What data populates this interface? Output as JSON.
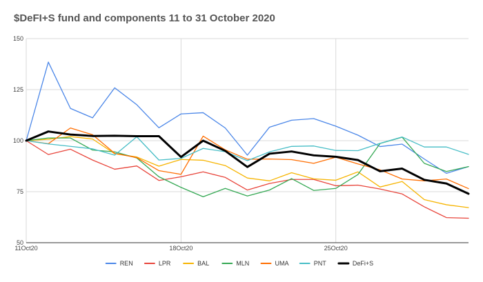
{
  "chart_data": {
    "type": "line",
    "title": "$DeFI+S fund and components 11 to 31 October 2020",
    "xlabel": "",
    "ylabel": "",
    "ylim": [
      50,
      150
    ],
    "yticks": [
      50,
      75,
      100,
      125,
      150
    ],
    "x": [
      "11Oct20",
      "12Oct20",
      "13Oct20",
      "14Oct20",
      "15Oct20",
      "16Oct20",
      "17Oct20",
      "18Oct20",
      "19Oct20",
      "20Oct20",
      "21Oct20",
      "22Oct20",
      "23Oct20",
      "24Oct20",
      "25Oct20",
      "26Oct20",
      "27Oct20",
      "28Oct20",
      "29Oct20",
      "30Oct20",
      "31Oct20"
    ],
    "x_tick_labels": [
      {
        "index": 0,
        "label": "11Oct20"
      },
      {
        "index": 7,
        "label": "18Oct20"
      },
      {
        "index": 14,
        "label": "25Oct20"
      }
    ],
    "grid": "vertical lines at labeled ticks, horizontal lines at y ticks",
    "legend_position": "bottom",
    "series": [
      {
        "name": "REN",
        "color": "#4a86e8",
        "width": 1.3,
        "values": [
          100,
          138.5,
          115.8,
          111.2,
          125.9,
          117.6,
          106.3,
          113.1,
          113.7,
          106.2,
          92.9,
          106.6,
          110.0,
          110.8,
          107.1,
          102.7,
          97.1,
          98.3,
          91.0,
          84.0,
          87.3
        ]
      },
      {
        "name": "LPR",
        "color": "#e8443a",
        "width": 1.3,
        "values": [
          100,
          93.2,
          95.8,
          90.5,
          86.0,
          87.6,
          80.5,
          82.3,
          84.7,
          82.0,
          75.8,
          79.0,
          81.0,
          81.0,
          77.9,
          78.2,
          76.3,
          73.9,
          67.6,
          62.3,
          62.0
        ]
      },
      {
        "name": "BAL",
        "color": "#f6b400",
        "width": 1.3,
        "values": [
          100,
          100.7,
          102.0,
          100.8,
          93.6,
          92.0,
          87.5,
          90.8,
          90.4,
          87.8,
          81.7,
          80.3,
          84.3,
          81.3,
          80.6,
          84.7,
          77.3,
          80.0,
          71.1,
          68.6,
          67.2
        ]
      },
      {
        "name": "MLN",
        "color": "#34a853",
        "width": 1.3,
        "values": [
          100,
          101.3,
          101.3,
          95.4,
          94.5,
          91.5,
          82.3,
          77.1,
          72.5,
          76.6,
          72.9,
          75.8,
          81.4,
          75.6,
          76.6,
          83.4,
          98.6,
          101.7,
          88.9,
          84.9,
          87.3
        ]
      },
      {
        "name": "UMA",
        "color": "#ff6d00",
        "width": 1.3,
        "values": [
          100,
          98.5,
          106.2,
          102.9,
          93.8,
          91.7,
          85.3,
          83.5,
          102.2,
          95.5,
          90.9,
          91.0,
          90.7,
          88.9,
          91.9,
          88.6,
          85.7,
          81.2,
          80.3,
          81.2,
          76.5
        ]
      },
      {
        "name": "PNT",
        "color": "#46bdc6",
        "width": 1.3,
        "values": [
          100,
          98.4,
          97.2,
          96.0,
          92.9,
          101.9,
          90.5,
          91.3,
          96.2,
          94.6,
          90.2,
          94.5,
          97.2,
          97.4,
          95.2,
          95.1,
          98.7,
          101.8,
          96.9,
          96.9,
          93.3
        ]
      },
      {
        "name": "DeFi+S",
        "color": "#000000",
        "width": 3,
        "values": [
          100,
          104.5,
          103.0,
          102.3,
          102.4,
          102.2,
          102.2,
          92.0,
          100.0,
          95.0,
          87.1,
          93.6,
          94.7,
          92.8,
          92.1,
          90.5,
          85.0,
          86.3,
          80.8,
          79.0,
          74.0
        ]
      }
    ]
  }
}
